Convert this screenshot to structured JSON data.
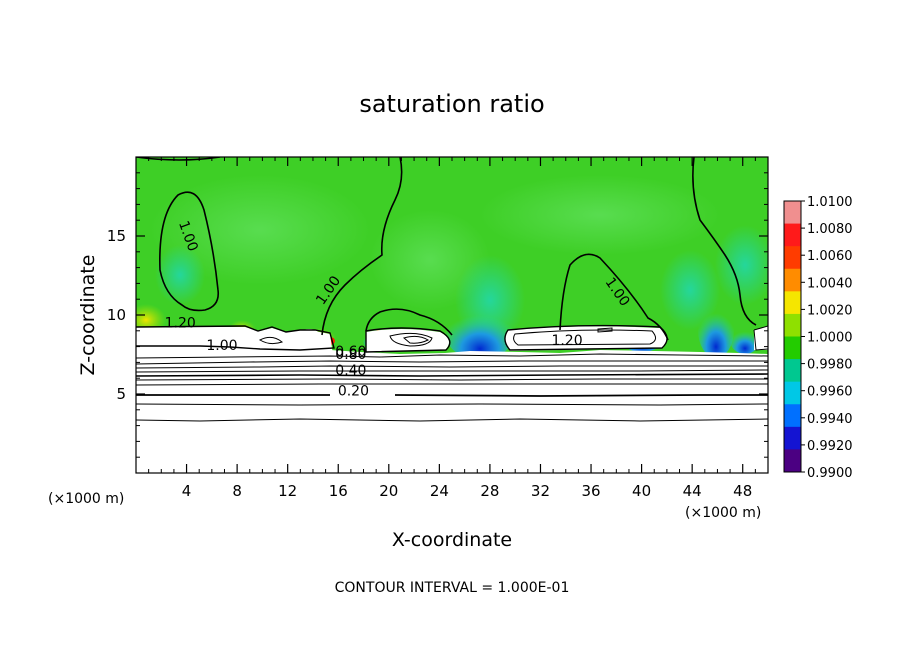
{
  "chart_data": {
    "type": "heatmap",
    "title": "saturation ratio",
    "xlabel": "X-coordinate",
    "ylabel": "Z-coordinate",
    "x_unit": "(×1000 m)",
    "y_unit": "(×1000 m)",
    "xlim": [
      0,
      50
    ],
    "ylim": [
      0,
      20
    ],
    "x_ticks": [
      4,
      8,
      12,
      16,
      20,
      24,
      28,
      32,
      36,
      40,
      44,
      48
    ],
    "y_ticks": [
      5,
      10,
      15
    ],
    "contour_interval_text": "CONTOUR INTERVAL = 1.000E-01",
    "colorbar": {
      "min": 0.99,
      "max": 1.01,
      "labels": [
        "1.0100",
        "1.0080",
        "1.0060",
        "1.0040",
        "1.0020",
        "1.0000",
        "0.9980",
        "0.9960",
        "0.9940",
        "0.9920",
        "0.9900"
      ],
      "colors": [
        "#f08f8f",
        "#ff1a1a",
        "#ff3c00",
        "#ff8c00",
        "#f5e600",
        "#8fe000",
        "#23cc00",
        "#00c890",
        "#00c8e6",
        "#0070ff",
        "#1414d2",
        "#4b0082"
      ]
    },
    "contour_labels": [
      {
        "text": "1.00",
        "x": 3.8,
        "z": 14.9
      },
      {
        "text": "1.00",
        "x": 15.5,
        "z": 11.4
      },
      {
        "text": "1.00",
        "x": 37.8,
        "z": 11.3
      },
      {
        "text": "1.20",
        "x": 3.5,
        "z": 9.2
      },
      {
        "text": "1.20",
        "x": 34.1,
        "z": 8.1
      },
      {
        "text": "1.00",
        "x": 6.8,
        "z": 7.8
      },
      {
        "text": "0.60",
        "x": 17.0,
        "z": 7.4
      },
      {
        "text": "0.80",
        "x": 17.0,
        "z": 7.2
      },
      {
        "text": "0.40",
        "x": 17.0,
        "z": 6.2
      },
      {
        "text": "0.20",
        "x": 17.2,
        "z": 4.9
      }
    ]
  }
}
